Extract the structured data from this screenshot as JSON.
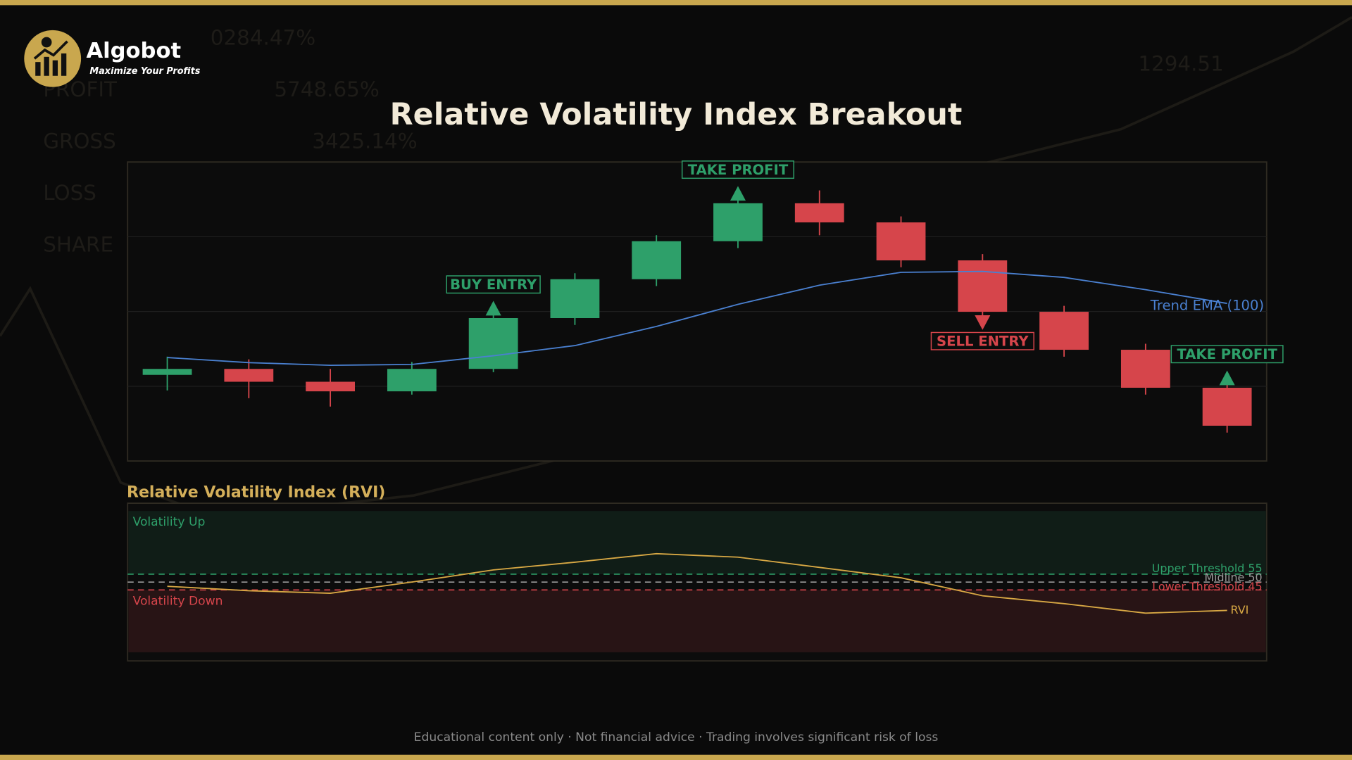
{
  "brand": {
    "name": "Algobot",
    "tagline": "Maximize Your Profits"
  },
  "background_text": [
    "0284.47%",
    "PROFIT",
    "5748.65%",
    "GROSS",
    "3425.14%",
    "LOSS",
    "SHARE",
    "1294.51"
  ],
  "chart_data": [
    {
      "type": "candlestick",
      "title": "Relative Volatility Index Breakout",
      "ylim": [
        0,
        100
      ],
      "ygrid": [
        25,
        50,
        75
      ],
      "up_color": "#2ea06a",
      "down_color": "#d6454b",
      "open": [
        28.8,
        30.8,
        26.5,
        23.3,
        30.8,
        47.8,
        60.8,
        73.5,
        86.2,
        79.8,
        67.1,
        49.9,
        37.2,
        24.5
      ],
      "high": [
        34.9,
        34.0,
        30.8,
        33.1,
        49.9,
        62.8,
        75.5,
        88.2,
        90.5,
        81.8,
        69.2,
        51.9,
        39.2,
        26.5
      ],
      "low": [
        23.6,
        21.0,
        18.2,
        22.2,
        29.7,
        45.5,
        58.5,
        71.2,
        75.5,
        64.8,
        47.6,
        34.9,
        22.2,
        9.5
      ],
      "close": [
        30.8,
        26.5,
        23.3,
        30.8,
        47.8,
        60.8,
        73.5,
        86.2,
        79.8,
        67.1,
        49.9,
        37.2,
        24.5,
        11.8
      ],
      "overlays": [
        {
          "name": "Trend EMA (100)",
          "color": "#4a80d0",
          "values": [
            34.6,
            32.9,
            32.0,
            32.3,
            35.2,
            38.6,
            45.0,
            52.4,
            58.8,
            63.1,
            63.4,
            61.4,
            57.3,
            52.7
          ]
        }
      ],
      "annotations": [
        {
          "text": "BUY ENTRY",
          "at": 4,
          "direction": "up",
          "color": "#2ea06a"
        },
        {
          "text": "TAKE PROFIT",
          "at": 7,
          "direction": "up",
          "color": "#2ea06a"
        },
        {
          "text": "SELL ENTRY",
          "at": 10,
          "direction": "down",
          "color": "#d6454b"
        },
        {
          "text": "TAKE PROFIT",
          "at": 13,
          "direction": "up",
          "color": "#2ea06a"
        }
      ]
    },
    {
      "type": "line",
      "title": "Relative Volatility Index (RVI)",
      "ylim": [
        0,
        100
      ],
      "series": [
        {
          "name": "RVI",
          "color": "#d8a844",
          "values": [
            47.3,
            44.5,
            42.9,
            50.0,
            57.7,
            62.6,
            68.0,
            65.8,
            59.3,
            52.7,
            41.3,
            36.3,
            30.3,
            32.0
          ]
        }
      ],
      "thresholds": [
        {
          "label": "Upper Threshold 55",
          "value": 55,
          "color": "#2ea06a"
        },
        {
          "label": "Midline 50",
          "value": 50,
          "color": "#9a9a9a"
        },
        {
          "label": "Lower Threshold 45",
          "value": 45,
          "color": "#d6454b"
        }
      ],
      "zones": [
        {
          "label": "Volatility Up",
          "color": "#2ea06a"
        },
        {
          "label": "Volatility Down",
          "color": "#d6454b"
        }
      ]
    }
  ],
  "footer": "Educational content only  ·  Not financial advice  ·  Trading involves significant risk of loss"
}
